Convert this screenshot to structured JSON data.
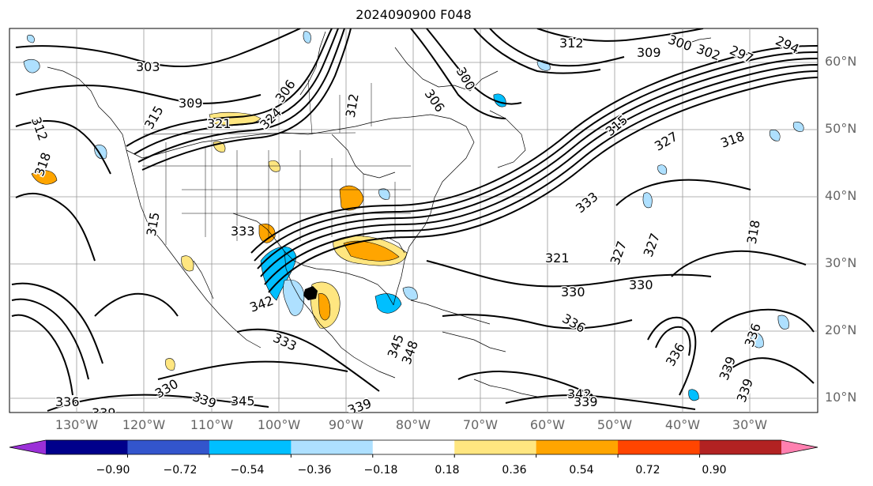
{
  "title": "2024090900 F048",
  "lat_labels": [
    "60°N",
    "50°N",
    "40°N",
    "30°N",
    "20°N",
    "10°N"
  ],
  "lon_labels": [
    "130°W",
    "120°W",
    "110°W",
    "100°W",
    "90°W",
    "80°W",
    "70°W",
    "60°W",
    "50°W",
    "40°W",
    "30°W"
  ],
  "contour_labels": [
    "303",
    "309",
    "321",
    "324",
    "306",
    "312",
    "318",
    "315",
    "315",
    "312",
    "306",
    "300",
    "309",
    "300",
    "302",
    "297",
    "294",
    "312",
    "327",
    "315",
    "318",
    "333",
    "333",
    "318",
    "321",
    "327",
    "327",
    "330",
    "330",
    "336",
    "336",
    "336",
    "339",
    "339",
    "342",
    "333",
    "345",
    "348",
    "330",
    "339",
    "345",
    "336",
    "339",
    "339",
    "342",
    "339",
    "339",
    "336"
  ],
  "colorbar": {
    "ticks": [
      "−0.90",
      "−0.72",
      "−0.54",
      "−0.36",
      "−0.18",
      "0.18",
      "0.36",
      "0.54",
      "0.72",
      "0.90"
    ],
    "colors": [
      "#9b30d8",
      "#00008b",
      "#3355cc",
      "#00bfff",
      "#aee0ff",
      "#ffffff",
      "#ffe680",
      "#ffa500",
      "#ff4500",
      "#b22222",
      "#ff80b0"
    ]
  }
}
